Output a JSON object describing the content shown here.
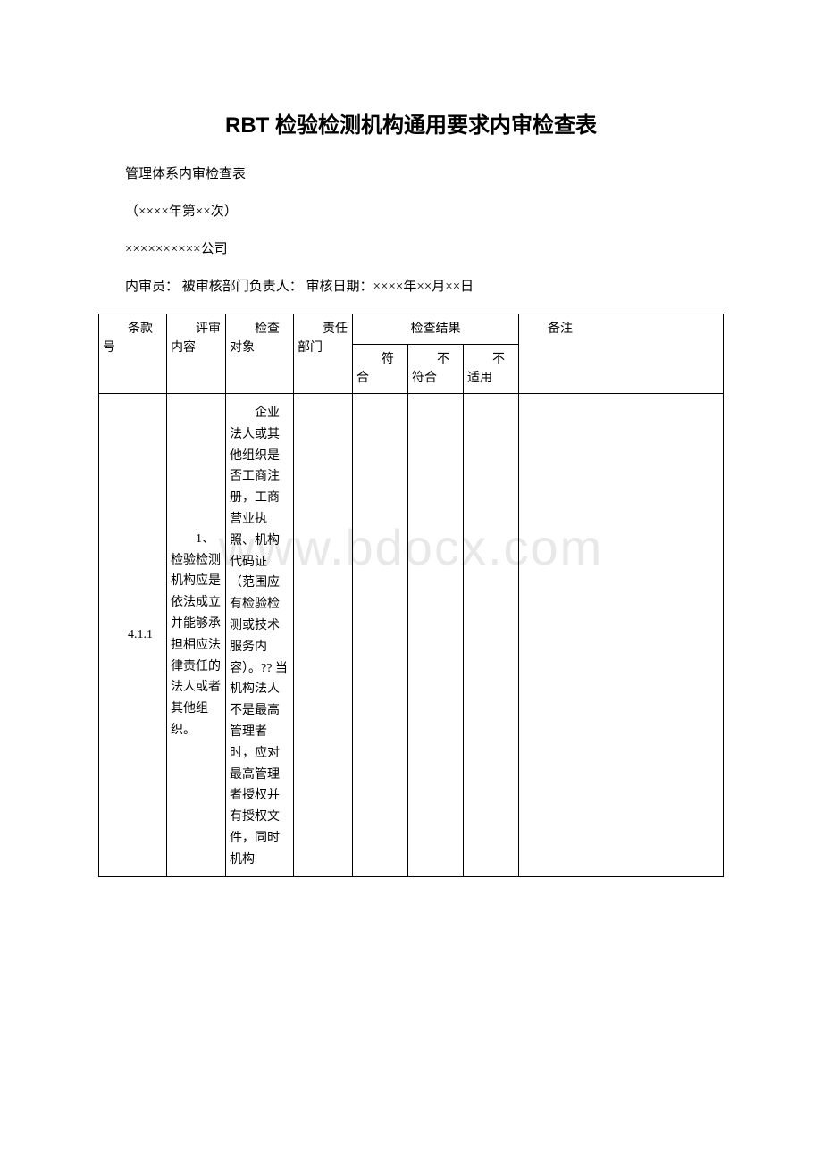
{
  "watermark": "www.bdocx.com",
  "title": "RBT 检验检测机构通用要求内审检查表",
  "meta": {
    "line1": "管理体系内审检查表",
    "line2": "（××××年第××次）",
    "line3": "××××××××××公司",
    "line4": "内审员：  被审核部门负责人：  审核日期：××××年××月××日"
  },
  "table": {
    "headers": {
      "clause": "条款号",
      "content": "评审内容",
      "object": "检查对象",
      "dept": "责任部门",
      "result_group": "检查结果",
      "conform": "符合",
      "noconform": "不符合",
      "na": "不适用",
      "remark": "备注"
    },
    "rows": [
      {
        "clause": "4.1.1",
        "content": "1、检验检测机构应是依法成立并能够承担相应法律责任的法人或者其他组织。",
        "object": "企业法人或其他组织是否工商注册，工商营业执照、机构代码证（范围应有检验检测或技术服务内容）。??\n当机构法人不是最高管理者时，应对最高管理者授权并有授权文件，同时机构",
        "dept": "",
        "conform": "",
        "noconform": "",
        "na": "",
        "remark": ""
      }
    ]
  }
}
